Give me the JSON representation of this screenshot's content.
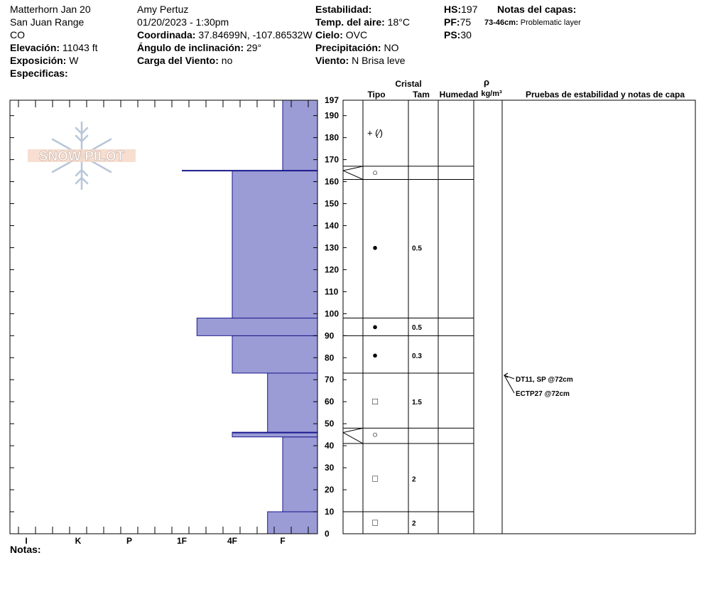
{
  "header": {
    "location": "Matterhorn Jan 20",
    "range": "San Juan Range",
    "state": "CO",
    "elevation_label": "Elevación:",
    "elevation_value": "11043 ft",
    "aspect_label": "Exposición:",
    "aspect_value": "W",
    "specifics_label": "Especificas:",
    "observer": "Amy  Pertuz",
    "datetime": "01/20/2023 - 1:30pm",
    "coord_label": "Coordinada:",
    "coord_value": "37.84699N, -107.86532W",
    "slope_label": "Ángulo de inclinación:",
    "slope_value": "29°",
    "wind_load_label": "Carga del Viento:",
    "wind_load_value": "no",
    "stability_label": "Estabilidad:",
    "stability_value": "",
    "air_temp_label": "Temp. del aire:",
    "air_temp_value": "18°C",
    "sky_label": "Cielo:",
    "sky_value": "OVC",
    "precip_label": "Precipitación:",
    "precip_value": "NO",
    "wind_label": "Viento:",
    "wind_value": "N Brisa leve",
    "hs_label": "HS:",
    "hs_value": "197",
    "pf_label": "PF:",
    "pf_value": "75",
    "ps_label": "PS:",
    "ps_value": "30",
    "layer_notes_label": "Notas del capas:",
    "layer_note_depth": "73-46cm:",
    "layer_note_text": "Problematic layer"
  },
  "columns": {
    "cristal": "Cristal",
    "tipo": "Tipo",
    "tam": "Tam",
    "humedad": "Humedad",
    "rho": "ρ",
    "density_unit": "kg/m³",
    "tests": "Pruebas de estabilidad y notas de capa"
  },
  "logo_text": "SNOW PILOT",
  "notes_label": "Notas:",
  "chart_data": {
    "type": "bar",
    "orientation": "horizontal",
    "title": "",
    "y_range": [
      0,
      197
    ],
    "y_ticks": [
      0,
      10,
      20,
      30,
      40,
      50,
      60,
      70,
      80,
      90,
      100,
      110,
      120,
      130,
      140,
      150,
      160,
      170,
      180,
      190,
      197
    ],
    "hardness_scale": [
      "I",
      "K",
      "P",
      "1F",
      "4F",
      "F"
    ],
    "layers": [
      {
        "bottom": 0,
        "top": 10,
        "hardness": 4.7
      },
      {
        "bottom": 10,
        "top": 44,
        "hardness": 5.0
      },
      {
        "bottom": 44,
        "top": 46,
        "hardness": 4.0
      },
      {
        "bottom": 46,
        "top": 73,
        "hardness": 4.7
      },
      {
        "bottom": 73,
        "top": 90,
        "hardness": 4.0
      },
      {
        "bottom": 90,
        "top": 98,
        "hardness": 3.3
      },
      {
        "bottom": 98,
        "top": 165,
        "hardness": 4.0
      },
      {
        "bottom": 165,
        "top": 197,
        "hardness": 5.0
      }
    ],
    "interfaces": [
      10,
      41,
      48,
      73,
      90,
      98,
      161,
      167,
      197
    ],
    "crust_lines": [
      {
        "depth": 165,
        "bottom": 165,
        "top": 165,
        "hardness": 3.0
      },
      {
        "depth": 46,
        "bottom": 44,
        "top": 48,
        "hardness": 4.0
      }
    ],
    "grain_rows": [
      {
        "depth": 5,
        "symbol": "□",
        "size": "2"
      },
      {
        "depth": 25,
        "symbol": "□",
        "size": "2"
      },
      {
        "depth": 45,
        "symbol": "○",
        "size": ""
      },
      {
        "depth": 60,
        "symbol": "□",
        "size": "1.5"
      },
      {
        "depth": 81,
        "symbol": "●",
        "size": "0.3"
      },
      {
        "depth": 94,
        "symbol": "●",
        "size": "0.5"
      },
      {
        "depth": 130,
        "symbol": "●",
        "size": "0.5"
      },
      {
        "depth": 164,
        "symbol": "○",
        "size": ""
      },
      {
        "depth": 182,
        "symbol": "+ (⁄)",
        "size": ""
      }
    ],
    "tests": [
      {
        "depth": 72,
        "text": "DT11, SP @72cm"
      },
      {
        "depth": 72,
        "text": "ECTP27 @72cm"
      }
    ]
  }
}
